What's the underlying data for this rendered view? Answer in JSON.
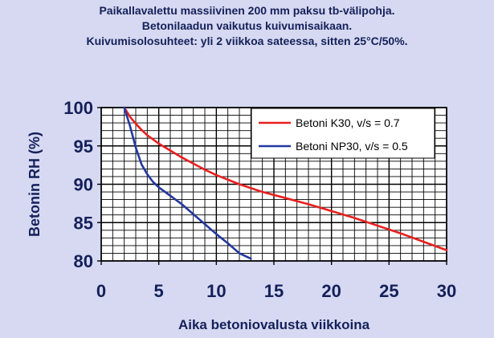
{
  "title_lines": [
    "Paikallavalettu massiivinen 200 mm paksu tb-välipohja.",
    "Betonilaadun  vaikutus kuivumisaikaan.",
    "Kuivumisolosuhteet: yli 2 viikkoa sateessa, sitten 25°C/50%."
  ],
  "colors": {
    "background": "#d6d9f1",
    "plot_background": "#ffffff",
    "grid": "#000000",
    "text": "#14205a"
  },
  "chart_data": {
    "type": "line",
    "xlabel": "Aika betoniovalusta viikkoina",
    "ylabel": "Betonin RH (%)",
    "xlim": [
      0,
      30
    ],
    "ylim": [
      80,
      100
    ],
    "x_ticks": [
      0,
      5,
      10,
      15,
      20,
      25,
      30
    ],
    "y_ticks": [
      80,
      85,
      90,
      95,
      100
    ],
    "grid": true,
    "legend_position": "top-right",
    "series": [
      {
        "name": "Betoni K30, v/s = 0.7",
        "color": "#e8201e",
        "x": [
          2,
          2.5,
          3,
          3.5,
          4,
          5,
          6,
          7,
          8,
          9,
          10,
          12,
          14,
          16,
          18,
          20,
          22,
          24,
          26,
          28,
          30
        ],
        "y": [
          100,
          98.8,
          97.9,
          97.1,
          96.4,
          95.3,
          94.4,
          93.5,
          92.7,
          91.9,
          91.2,
          90.0,
          89.0,
          88.2,
          87.4,
          86.5,
          85.6,
          84.6,
          83.6,
          82.5,
          81.4
        ]
      },
      {
        "name": "Betoni NP30, v/s = 0.5",
        "color": "#2438a0",
        "x": [
          2,
          2.5,
          3,
          3.5,
          4,
          4.5,
          5,
          6,
          7,
          8,
          9,
          10,
          11,
          12,
          13
        ],
        "y": [
          100,
          97.6,
          94.8,
          92.6,
          91.3,
          90.3,
          89.6,
          88.5,
          87.4,
          86.1,
          84.8,
          83.5,
          82.3,
          81.0,
          80.3
        ]
      }
    ]
  }
}
